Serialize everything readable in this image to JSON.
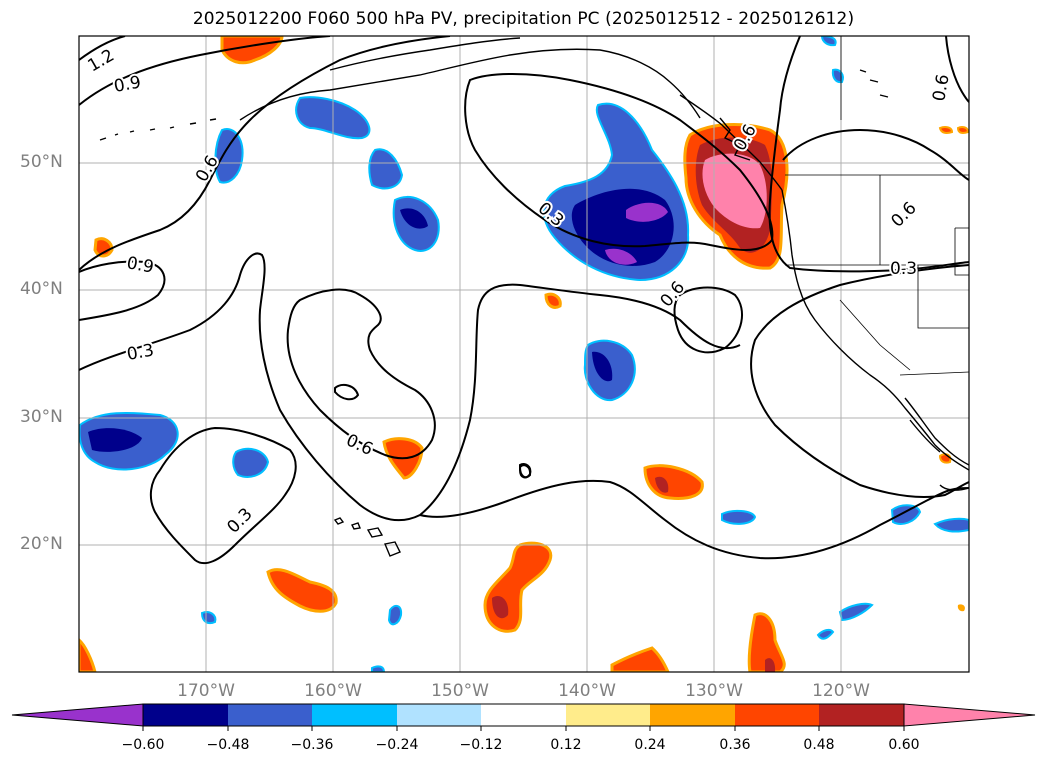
{
  "title": "2025012200 F060 500 hPa PV, precipitation PC (2025012512 - 2025012612)",
  "latitude_labels": [
    "50°N",
    "40°N",
    "30°N",
    "20°N"
  ],
  "longitude_labels": [
    "170°W",
    "160°W",
    "150°W",
    "140°W",
    "130°W",
    "120°W"
  ],
  "colorbar": {
    "ticks": [
      "−0.60",
      "−0.48",
      "−0.36",
      "−0.24",
      "−0.12",
      "0.12",
      "0.24",
      "0.36",
      "0.48",
      "0.60"
    ],
    "colors": [
      "#9932cc",
      "#00008b",
      "#3a5fcd",
      "#00bfff",
      "#b0e2ff",
      "#ffffff",
      "#ffec8b",
      "#ffa500",
      "#ff4500",
      "#b22222",
      "#ff82ab"
    ]
  },
  "pv_contour_labels": [
    "1.2",
    "0.9",
    "0.6",
    "0.9",
    "0.3",
    "0.3",
    "0.6",
    "0.3",
    "0.6",
    "0.6",
    "0.6",
    "0.3",
    "0.6"
  ],
  "colors": {
    "neg_purple": "#9932cc",
    "neg_navy": "#00008b",
    "neg_blue": "#3a5fcd",
    "neg_sky": "#00bfff",
    "neg_light": "#b0e2ff",
    "pos_yellow": "#ffec8b",
    "pos_orange": "#ffa500",
    "pos_red": "#ff4500",
    "pos_firebrick": "#b22222",
    "pos_pink": "#ff82ab",
    "grid": "#b0b0b0",
    "axis_label": "#7f7f7f"
  }
}
